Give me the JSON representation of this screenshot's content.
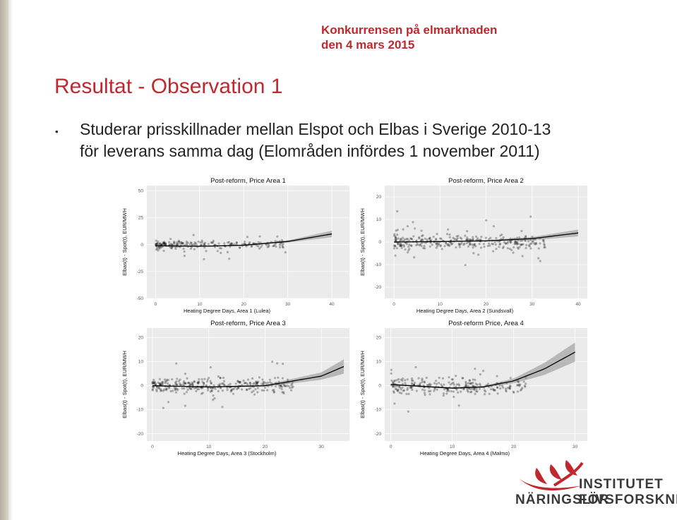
{
  "header": {
    "line1": "Konkurrensen på elmarknaden",
    "line2": "den 4 mars 2015"
  },
  "title": "Resultat - Observation 1",
  "bullet": {
    "symbol": "•",
    "line1": "Studerar prisskillnader mellan Elspot och Elbas i Sverige 2010-13",
    "line2": "för leverans samma dag (Elområden infördes 1 november 2011)"
  },
  "logo": {
    "line1": "INSTITUTET FÖR",
    "line2": "NÄRINGSLIVSFORSKNING"
  },
  "colors": {
    "accent": "#c0282e",
    "panel_bg": "#ebebeb",
    "gridline": "#ffffff",
    "points": "#000000"
  },
  "chart_data": [
    {
      "type": "scatter",
      "title": "Post-reform, Price Area 1",
      "xlabel": "Heating Degree Days, Area 1 (Lulea)",
      "ylabel": "Elbas(t) - Spot(t), EUR/MWH",
      "xlim": [
        -2,
        44
      ],
      "ylim": [
        -50,
        55
      ],
      "xticks": [
        0,
        10,
        20,
        30,
        40
      ],
      "yticks": [
        50,
        25,
        0,
        -25,
        -50
      ],
      "cloud": {
        "x": [
          0,
          30
        ],
        "center": 0,
        "spread": 3,
        "n": 220
      },
      "fit": {
        "x": [
          0,
          10,
          20,
          30,
          40
        ],
        "y": [
          -1,
          -1.5,
          -0.5,
          3,
          10
        ],
        "band": [
          0.3,
          0.3,
          0.5,
          1,
          3
        ]
      },
      "grid": true
    },
    {
      "type": "scatter",
      "title": "Post-reform, Price Area 2",
      "xlabel": "Heating Degree Days, Area 2 (Sundsvall)",
      "ylabel": "Elbas(t) - Spot(t), EUR/MWH",
      "xlim": [
        -2,
        42
      ],
      "ylim": [
        -25,
        25
      ],
      "xticks": [
        0,
        10,
        20,
        30,
        40
      ],
      "yticks": [
        20,
        10,
        0,
        -10,
        -20
      ],
      "cloud": {
        "x": [
          0,
          33
        ],
        "center": 0,
        "spread": 3,
        "n": 320
      },
      "fit": {
        "x": [
          0,
          10,
          20,
          30,
          40
        ],
        "y": [
          0,
          0.2,
          0.5,
          1.5,
          4
        ],
        "band": [
          0.2,
          0.2,
          0.3,
          0.7,
          1.5
        ]
      },
      "grid": true
    },
    {
      "type": "scatter",
      "title": "Post-reform, Price Area 3",
      "xlabel": "Heating Degree Days, Area 3 (Stockholm)",
      "ylabel": "Elbas(t) - Spot(t), EUR/MWH",
      "xlim": [
        -1,
        35
      ],
      "ylim": [
        -23,
        24
      ],
      "xticks": [
        0,
        10,
        20,
        30
      ],
      "yticks": [
        20,
        10,
        0,
        -10,
        -20
      ],
      "cloud": {
        "x": [
          0,
          25
        ],
        "center": 0,
        "spread": 3,
        "n": 320
      },
      "fit": {
        "x": [
          0,
          10,
          20,
          30,
          34
        ],
        "y": [
          0,
          -0.5,
          0,
          4,
          8
        ],
        "band": [
          0.2,
          0.2,
          0.4,
          1.5,
          3
        ]
      },
      "grid": true
    },
    {
      "type": "scatter",
      "title": "Post-reform Price, Area 4",
      "xlabel": "Heating Degree Days, Area 4 (Malmo)",
      "ylabel": "Elbas(t) - Spot(t), EUR/MWH",
      "xlim": [
        -1,
        32
      ],
      "ylim": [
        -23,
        24
      ],
      "xticks": [
        0,
        10,
        20,
        30
      ],
      "yticks": [
        20,
        10,
        0,
        -10,
        -20
      ],
      "cloud": {
        "x": [
          0,
          22
        ],
        "center": 0,
        "spread": 3,
        "n": 260
      },
      "fit": {
        "x": [
          0,
          10,
          15,
          20,
          25,
          30
        ],
        "y": [
          0.5,
          -1,
          -0.5,
          2,
          7,
          14
        ],
        "band": [
          0.3,
          0.3,
          0.4,
          1,
          2.5,
          4
        ]
      },
      "grid": true
    }
  ]
}
